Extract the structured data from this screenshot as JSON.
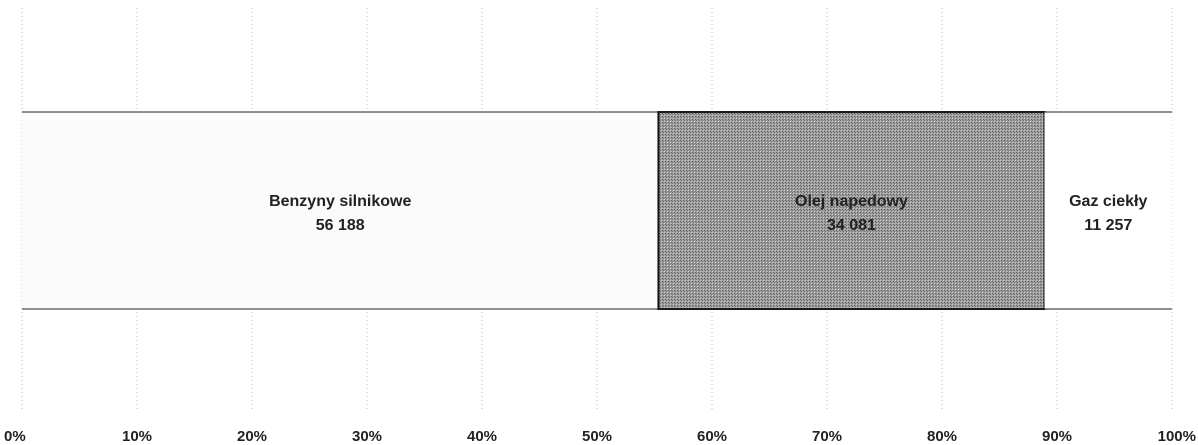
{
  "chart_data": {
    "type": "bar",
    "orientation": "horizontal",
    "stacked": "100%",
    "segments": [
      {
        "label": "Benzyny silnikowe",
        "value_label": "56 188",
        "value": 56188,
        "fill": "#fbfbfb"
      },
      {
        "label": "Olej napedowy",
        "value_label": "34 081",
        "value": 34081,
        "fill": "#9a9a9a"
      },
      {
        "label": "Gaz ciekły",
        "value_label": "11 257",
        "value": 11257,
        "fill": "#ffffff"
      }
    ],
    "x_ticks": [
      "0%",
      "10%",
      "20%",
      "30%",
      "40%",
      "50%",
      "60%",
      "70%",
      "80%",
      "90%",
      "100%"
    ],
    "xlim": [
      0,
      100
    ],
    "grid": true,
    "legend": "none"
  }
}
